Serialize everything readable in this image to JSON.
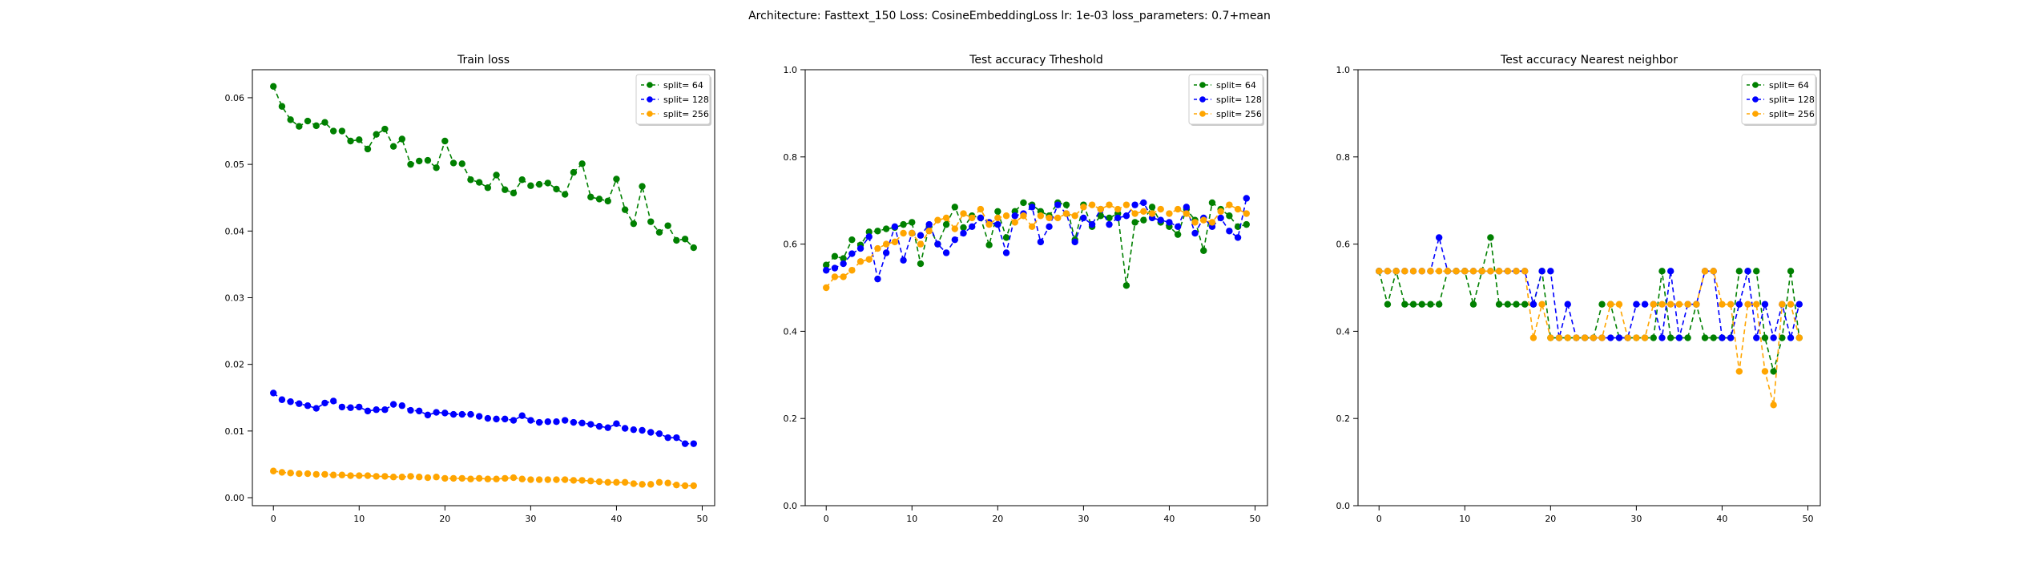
{
  "figure": {
    "suptitle": "Architecture: Fasttext_150 Loss: CosineEmbeddingLoss lr: 1e-03 loss_parameters: 0.7+mean"
  },
  "chart_data": [
    {
      "type": "line",
      "title": "Train loss",
      "xlabel": "",
      "ylabel": "",
      "xlim": [
        -2.45,
        51.45
      ],
      "ylim": [
        -0.0012,
        0.0642
      ],
      "xticks": [
        0,
        10,
        20,
        30,
        40,
        50
      ],
      "yticks": [
        0.0,
        0.01,
        0.02,
        0.03,
        0.04,
        0.05,
        0.06
      ],
      "ytick_format": 2,
      "legend": "top-right",
      "x": [
        0,
        1,
        2,
        3,
        4,
        5,
        6,
        7,
        8,
        9,
        10,
        11,
        12,
        13,
        14,
        15,
        16,
        17,
        18,
        19,
        20,
        21,
        22,
        23,
        24,
        25,
        26,
        27,
        28,
        29,
        30,
        31,
        32,
        33,
        34,
        35,
        36,
        37,
        38,
        39,
        40,
        41,
        42,
        43,
        44,
        45,
        46,
        47,
        48,
        49
      ],
      "series": [
        {
          "name": "split= 64",
          "color": "#008000",
          "values": [
            0.0617,
            0.0587,
            0.0567,
            0.0557,
            0.0565,
            0.0558,
            0.0563,
            0.055,
            0.055,
            0.0535,
            0.0537,
            0.0523,
            0.0545,
            0.0553,
            0.0527,
            0.0538,
            0.05,
            0.0505,
            0.0506,
            0.0495,
            0.0535,
            0.0502,
            0.0501,
            0.0477,
            0.0473,
            0.0465,
            0.0484,
            0.0462,
            0.0457,
            0.0477,
            0.0468,
            0.047,
            0.0472,
            0.0463,
            0.0455,
            0.0488,
            0.0501,
            0.0451,
            0.0448,
            0.0445,
            0.0478,
            0.0432,
            0.0411,
            0.0467,
            0.0414,
            0.0398,
            0.0408,
            0.0386,
            0.0388,
            0.0375
          ]
        },
        {
          "name": "split= 128",
          "color": "#0000ff",
          "values": [
            0.0157,
            0.0147,
            0.0144,
            0.0141,
            0.0138,
            0.0134,
            0.0142,
            0.0145,
            0.0136,
            0.0135,
            0.0136,
            0.013,
            0.0132,
            0.0132,
            0.014,
            0.0138,
            0.0131,
            0.013,
            0.0124,
            0.0128,
            0.0127,
            0.0125,
            0.0125,
            0.0125,
            0.0122,
            0.0119,
            0.0118,
            0.0118,
            0.0116,
            0.0123,
            0.0116,
            0.0113,
            0.0114,
            0.0114,
            0.0116,
            0.0113,
            0.0112,
            0.011,
            0.0107,
            0.0105,
            0.0111,
            0.0104,
            0.0102,
            0.0101,
            0.0098,
            0.0096,
            0.009,
            0.009,
            0.0081,
            0.0081
          ]
        },
        {
          "name": "split= 256",
          "color": "#ffa500",
          "values": [
            0.004,
            0.0038,
            0.0037,
            0.0036,
            0.0036,
            0.0035,
            0.0035,
            0.0034,
            0.0034,
            0.0033,
            0.0033,
            0.0033,
            0.0032,
            0.0032,
            0.0031,
            0.0031,
            0.0032,
            0.0031,
            0.003,
            0.0031,
            0.0029,
            0.0029,
            0.0029,
            0.0028,
            0.0029,
            0.0028,
            0.0028,
            0.0029,
            0.003,
            0.0028,
            0.0027,
            0.0027,
            0.0027,
            0.0027,
            0.0027,
            0.0026,
            0.0026,
            0.0025,
            0.0024,
            0.0023,
            0.0023,
            0.0023,
            0.0021,
            0.002,
            0.002,
            0.0023,
            0.0022,
            0.0019,
            0.0018,
            0.0018
          ]
        }
      ]
    },
    {
      "type": "line",
      "title": "Test accuracy Trheshold",
      "xlabel": "",
      "ylabel": "",
      "xlim": [
        -2.45,
        51.45
      ],
      "ylim": [
        0,
        1
      ],
      "xticks": [
        0,
        10,
        20,
        30,
        40,
        50
      ],
      "yticks": [
        0.0,
        0.2,
        0.4,
        0.6,
        0.8,
        1.0
      ],
      "ytick_format": 1,
      "legend": "top-right",
      "x": [
        0,
        1,
        2,
        3,
        4,
        5,
        6,
        7,
        8,
        9,
        10,
        11,
        12,
        13,
        14,
        15,
        16,
        17,
        18,
        19,
        20,
        21,
        22,
        23,
        24,
        25,
        26,
        27,
        28,
        29,
        30,
        31,
        32,
        33,
        34,
        35,
        36,
        37,
        38,
        39,
        40,
        41,
        42,
        43,
        44,
        45,
        46,
        47,
        48,
        49
      ],
      "series": [
        {
          "name": "split= 64",
          "color": "#008000",
          "values": [
            0.552,
            0.572,
            0.567,
            0.61,
            0.598,
            0.628,
            0.63,
            0.635,
            0.638,
            0.645,
            0.65,
            0.555,
            0.64,
            0.6,
            0.645,
            0.685,
            0.638,
            0.665,
            0.66,
            0.598,
            0.675,
            0.615,
            0.675,
            0.695,
            0.69,
            0.675,
            0.665,
            0.695,
            0.69,
            0.61,
            0.69,
            0.64,
            0.665,
            0.66,
            0.67,
            0.505,
            0.65,
            0.655,
            0.685,
            0.65,
            0.64,
            0.622,
            0.68,
            0.655,
            0.585,
            0.695,
            0.68,
            0.665,
            0.64,
            0.645
          ]
        },
        {
          "name": "split= 128",
          "color": "#0000ff",
          "values": [
            0.54,
            0.545,
            0.555,
            0.578,
            0.59,
            0.617,
            0.52,
            0.58,
            0.64,
            0.563,
            0.625,
            0.62,
            0.645,
            0.6,
            0.58,
            0.61,
            0.625,
            0.64,
            0.66,
            0.65,
            0.645,
            0.58,
            0.665,
            0.67,
            0.685,
            0.605,
            0.64,
            0.69,
            0.67,
            0.605,
            0.66,
            0.645,
            0.68,
            0.645,
            0.66,
            0.665,
            0.69,
            0.695,
            0.66,
            0.655,
            0.65,
            0.64,
            0.685,
            0.625,
            0.66,
            0.64,
            0.66,
            0.63,
            0.615,
            0.705
          ]
        },
        {
          "name": "split= 256",
          "color": "#ffa500",
          "values": [
            0.5,
            0.525,
            0.525,
            0.54,
            0.56,
            0.565,
            0.59,
            0.6,
            0.605,
            0.625,
            0.625,
            0.6,
            0.63,
            0.655,
            0.66,
            0.635,
            0.67,
            0.66,
            0.68,
            0.645,
            0.66,
            0.665,
            0.65,
            0.665,
            0.64,
            0.665,
            0.66,
            0.66,
            0.67,
            0.665,
            0.685,
            0.69,
            0.68,
            0.69,
            0.68,
            0.69,
            0.67,
            0.675,
            0.67,
            0.68,
            0.67,
            0.68,
            0.67,
            0.65,
            0.655,
            0.65,
            0.675,
            0.69,
            0.68,
            0.67
          ]
        }
      ]
    },
    {
      "type": "line",
      "title": "Test accuracy Nearest neighbor",
      "xlabel": "",
      "ylabel": "",
      "xlim": [
        -2.45,
        51.45
      ],
      "ylim": [
        0,
        1
      ],
      "xticks": [
        0,
        10,
        20,
        30,
        40,
        50
      ],
      "yticks": [
        0.0,
        0.2,
        0.4,
        0.6,
        0.8,
        1.0
      ],
      "ytick_format": 1,
      "legend": "top-right",
      "x": [
        0,
        1,
        2,
        3,
        4,
        5,
        6,
        7,
        8,
        9,
        10,
        11,
        12,
        13,
        14,
        15,
        16,
        17,
        18,
        19,
        20,
        21,
        22,
        23,
        24,
        25,
        26,
        27,
        28,
        29,
        30,
        31,
        32,
        33,
        34,
        35,
        36,
        37,
        38,
        39,
        40,
        41,
        42,
        43,
        44,
        45,
        46,
        47,
        48,
        49
      ],
      "series": [
        {
          "name": "split= 64",
          "color": "#008000",
          "values": [
            0.538,
            0.462,
            0.538,
            0.462,
            0.462,
            0.462,
            0.462,
            0.462,
            0.538,
            0.538,
            0.538,
            0.462,
            0.538,
            0.615,
            0.462,
            0.462,
            0.462,
            0.462,
            0.462,
            0.538,
            0.385,
            0.385,
            0.385,
            0.385,
            0.385,
            0.385,
            0.462,
            0.462,
            0.385,
            0.385,
            0.385,
            0.385,
            0.385,
            0.538,
            0.385,
            0.385,
            0.385,
            0.462,
            0.385,
            0.385,
            0.385,
            0.385,
            0.538,
            0.538,
            0.538,
            0.385,
            0.308,
            0.385,
            0.538,
            0.385
          ]
        },
        {
          "name": "split= 128",
          "color": "#0000ff",
          "values": [
            0.538,
            0.538,
            0.538,
            0.538,
            0.538,
            0.538,
            0.538,
            0.615,
            0.538,
            0.538,
            0.538,
            0.538,
            0.538,
            0.538,
            0.538,
            0.538,
            0.538,
            0.538,
            0.462,
            0.538,
            0.538,
            0.385,
            0.462,
            0.385,
            0.385,
            0.385,
            0.385,
            0.385,
            0.385,
            0.385,
            0.462,
            0.462,
            0.462,
            0.385,
            0.538,
            0.385,
            0.462,
            0.462,
            0.538,
            0.538,
            0.385,
            0.385,
            0.462,
            0.538,
            0.385,
            0.462,
            0.385,
            0.462,
            0.385,
            0.462
          ]
        },
        {
          "name": "split= 256",
          "color": "#ffa500",
          "values": [
            0.538,
            0.538,
            0.538,
            0.538,
            0.538,
            0.538,
            0.538,
            0.538,
            0.538,
            0.538,
            0.538,
            0.538,
            0.538,
            0.538,
            0.538,
            0.538,
            0.538,
            0.538,
            0.385,
            0.462,
            0.385,
            0.385,
            0.385,
            0.385,
            0.385,
            0.385,
            0.385,
            0.462,
            0.462,
            0.385,
            0.385,
            0.385,
            0.462,
            0.462,
            0.462,
            0.462,
            0.462,
            0.462,
            0.538,
            0.538,
            0.462,
            0.462,
            0.308,
            0.462,
            0.462,
            0.308,
            0.231,
            0.462,
            0.462,
            0.385
          ]
        }
      ]
    }
  ]
}
